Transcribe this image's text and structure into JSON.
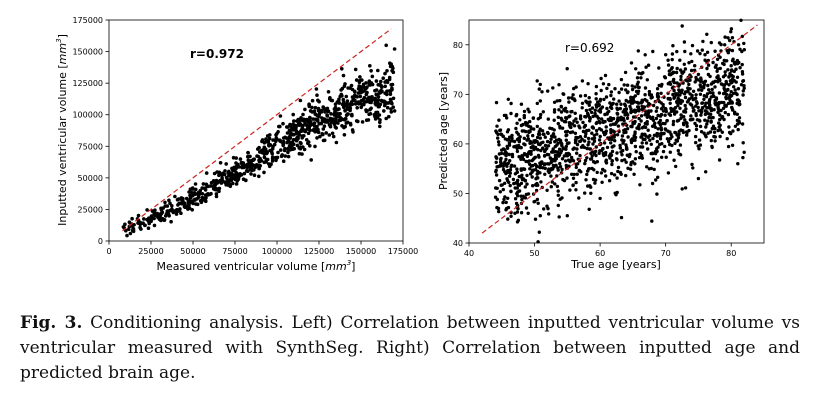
{
  "chart_data": [
    {
      "type": "scatter",
      "xlabel": "Measured ventricular volume [mm3]",
      "xlabel_unit_base": "mm",
      "xlabel_unit_exp": "3",
      "xlabel_prefix": "Measured ventricular volume [",
      "xlabel_suffix": "]",
      "ylabel_prefix": "Inputted ventricular volume [",
      "ylabel_unit_base": "mm",
      "ylabel_unit_exp": "3",
      "ylabel_suffix": "]",
      "annotation": "r=0.972",
      "xlim": [
        0,
        175000
      ],
      "ylim": [
        0,
        175000
      ],
      "xticks": [
        0,
        25000,
        50000,
        75000,
        100000,
        125000,
        150000,
        175000
      ],
      "yticks": [
        0,
        25000,
        50000,
        75000,
        100000,
        125000,
        150000,
        175000
      ],
      "marker_color": "#000000",
      "reference_line": {
        "style": "dashed",
        "color": "#cc2222",
        "from": [
          8000,
          8000
        ],
        "to": [
          168000,
          168000
        ]
      },
      "trend_points": [
        [
          8000,
          9000
        ],
        [
          25000,
          17000
        ],
        [
          50000,
          34000
        ],
        [
          75000,
          55000
        ],
        [
          100000,
          76000
        ],
        [
          125000,
          95000
        ],
        [
          150000,
          110000
        ],
        [
          170000,
          118000
        ]
      ],
      "outliers": [
        [
          165000,
          155000
        ],
        [
          170000,
          152000
        ],
        [
          168000,
          140000
        ],
        [
          160000,
          135000
        ],
        [
          167000,
          128000
        ],
        [
          155000,
          125000
        ],
        [
          140000,
          108000
        ],
        [
          150000,
          122000
        ],
        [
          120000,
          103000
        ],
        [
          130000,
          105000
        ],
        [
          110000,
          95000
        ],
        [
          102000,
          99000
        ],
        [
          165000,
          97000
        ],
        [
          158000,
          100000
        ],
        [
          145000,
          88000
        ],
        [
          170000,
          103000
        ]
      ]
    },
    {
      "type": "scatter",
      "xlabel": "True age [years]",
      "ylabel": "Predicted age [years]",
      "annotation": "r=0.692",
      "xlim": [
        40,
        85
      ],
      "ylim": [
        40,
        85
      ],
      "xticks": [
        40,
        50,
        60,
        70,
        80
      ],
      "yticks": [
        40,
        50,
        60,
        70,
        80
      ],
      "marker_color": "#000000",
      "reference_line": {
        "style": "dashed",
        "color": "#cc2222",
        "from": [
          42,
          42
        ],
        "to": [
          84,
          84
        ]
      },
      "x_range_of_points": [
        44,
        82
      ],
      "trend_points": [
        [
          44,
          54.5
        ],
        [
          50,
          57.5
        ],
        [
          60,
          62
        ],
        [
          70,
          66.5
        ],
        [
          82,
          71.5
        ]
      ],
      "outliers": [
        [
          76,
          78
        ],
        [
          79,
          80
        ],
        [
          82,
          79
        ],
        [
          70,
          78
        ],
        [
          71,
          77
        ],
        [
          46,
          69
        ],
        [
          48,
          68
        ],
        [
          55,
          45.5
        ],
        [
          47,
          46
        ],
        [
          60,
          49
        ],
        [
          68,
          52
        ],
        [
          75,
          53
        ],
        [
          81,
          56
        ],
        [
          49,
          67
        ]
      ]
    }
  ],
  "caption": {
    "label": "Fig. 3.",
    "text": " Conditioning analysis. Left) Correlation between inputted ventricular volume vs ventricular measured with SynthSeg. Right) Correlation between inputted age and predicted brain age."
  }
}
